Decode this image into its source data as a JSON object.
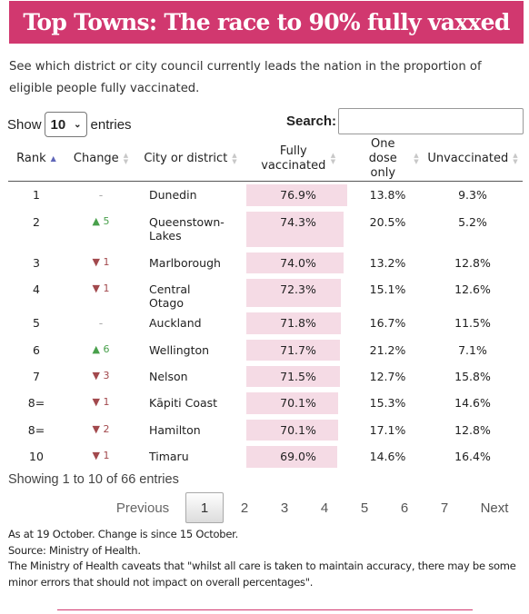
{
  "title": "Top Towns: The race to 90% fully vaxxed",
  "intro": "See which district or city council currently leads the nation in the proportion of eligible people fully vaccinated.",
  "length": {
    "prefix": "Show",
    "value": "10",
    "suffix": "entries"
  },
  "search": {
    "label": "Search:",
    "value": ""
  },
  "columns": [
    "Rank",
    "Change",
    "City or district",
    "Fully vaccinated",
    "One dose only",
    "Unvaccinated"
  ],
  "rows": [
    {
      "rank": "1",
      "change": "-",
      "dir": "none",
      "city": "Dunedin",
      "fully": "76.9%",
      "fully_value": 76.9,
      "one_dose": "13.8%",
      "unvax": "9.3%"
    },
    {
      "rank": "2",
      "change": "▲ 5",
      "dir": "up",
      "city": "Queenstown-Lakes",
      "fully": "74.3%",
      "fully_value": 74.3,
      "one_dose": "20.5%",
      "unvax": "5.2%"
    },
    {
      "rank": "3",
      "change": "▼ 1",
      "dir": "down",
      "city": "Marlborough",
      "fully": "74.0%",
      "fully_value": 74.0,
      "one_dose": "13.2%",
      "unvax": "12.8%"
    },
    {
      "rank": "4",
      "change": "▼ 1",
      "dir": "down",
      "city": "Central Otago",
      "fully": "72.3%",
      "fully_value": 72.3,
      "one_dose": "15.1%",
      "unvax": "12.6%"
    },
    {
      "rank": "5",
      "change": "-",
      "dir": "none",
      "city": "Auckland",
      "fully": "71.8%",
      "fully_value": 71.8,
      "one_dose": "16.7%",
      "unvax": "11.5%"
    },
    {
      "rank": "6",
      "change": "▲ 6",
      "dir": "up",
      "city": "Wellington",
      "fully": "71.7%",
      "fully_value": 71.7,
      "one_dose": "21.2%",
      "unvax": "7.1%"
    },
    {
      "rank": "7",
      "change": "▼ 3",
      "dir": "down",
      "city": "Nelson",
      "fully": "71.5%",
      "fully_value": 71.5,
      "one_dose": "12.7%",
      "unvax": "15.8%"
    },
    {
      "rank": "8=",
      "change": "▼ 1",
      "dir": "down",
      "city": "Kāpiti Coast",
      "fully": "70.1%",
      "fully_value": 70.1,
      "one_dose": "15.3%",
      "unvax": "14.6%"
    },
    {
      "rank": "8=",
      "change": "▼ 2",
      "dir": "down",
      "city": "Hamilton",
      "fully": "70.1%",
      "fully_value": 70.1,
      "one_dose": "17.1%",
      "unvax": "12.8%"
    },
    {
      "rank": "10",
      "change": "▼ 1",
      "dir": "down",
      "city": "Timaru",
      "fully": "69.0%",
      "fully_value": 69.0,
      "one_dose": "14.6%",
      "unvax": "16.4%"
    }
  ],
  "info": "Showing 1 to 10 of 66 entries",
  "pagination": {
    "previous": "Previous",
    "pages": [
      "1",
      "2",
      "3",
      "4",
      "5",
      "6",
      "7"
    ],
    "current": "1",
    "next": "Next"
  },
  "notes": [
    "As at 19 October. Change is since 15 October.",
    "Source: Ministry of Health.",
    "The Ministry of Health caveats that \"whilst all care is taken to maintain accuracy, there may be some minor errors that should not impact on overall percentages\"."
  ],
  "colors": {
    "brand": "#d1386f",
    "bar": "#f5dbe5",
    "up": "#49a04c",
    "down": "#a2494d"
  }
}
